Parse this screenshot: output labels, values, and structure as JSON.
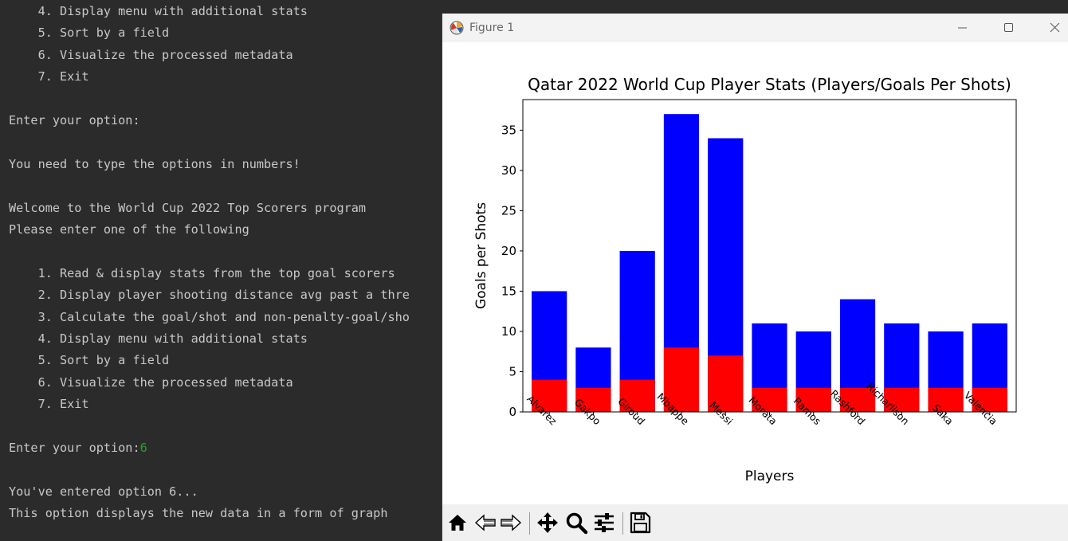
{
  "terminal": {
    "lines": [
      "    4. Display menu with additional stats",
      "    5. Sort by a field",
      "    6. Visualize the processed metadata",
      "    7. Exit",
      "",
      "Enter your option:",
      "",
      "You need to type the options in numbers!",
      "",
      "Welcome to the World Cup 2022 Top Scorers program",
      "Please enter one of the following",
      "",
      "    1. Read & display stats from the top goal scorers",
      "    2. Display player shooting distance avg past a thre",
      "    3. Calculate the goal/shot and non-penalty-goal/sho",
      "    4. Display menu with additional stats",
      "    5. Sort by a field",
      "    6. Visualize the processed metadata",
      "    7. Exit",
      "",
      "Enter your option:",
      "",
      "You've entered option 6...",
      "This option displays the new data in a form of graph"
    ],
    "typed_input": "6",
    "typed_input_line": 20,
    "input_color": "#27a327"
  },
  "window": {
    "title": "Figure 1",
    "icons": [
      "matplotlib-icon",
      "minimize-icon",
      "maximize-icon",
      "close-icon"
    ]
  },
  "toolbar": {
    "buttons": [
      "home-icon",
      "back-icon",
      "forward-icon",
      "pan-icon",
      "zoom-icon",
      "configure-subplots-icon",
      "save-icon"
    ]
  },
  "chart_data": {
    "type": "bar",
    "title": "Qatar 2022 World Cup Player Stats (Players/Goals Per Shots)",
    "xlabel": "Players",
    "ylabel": "Goals per Shots",
    "categories": [
      "Alvarez",
      "Gakpo",
      "Giroud",
      "Mbappe",
      "Messi",
      "Morata",
      "Ramos",
      "Rashford",
      "Richarlison",
      "Saka",
      "Valencia"
    ],
    "series": [
      {
        "values": [
          15,
          8,
          20,
          37,
          34,
          11,
          10,
          14,
          11,
          10,
          11
        ],
        "color": "#0000ff"
      },
      {
        "values": [
          4,
          3,
          4,
          8,
          7,
          3,
          3,
          3,
          3,
          3,
          3
        ],
        "color": "#ff0000"
      }
    ],
    "ylim": [
      0,
      38.8
    ],
    "yticks": [
      0,
      5,
      10,
      15,
      20,
      25,
      30,
      35
    ],
    "xtick_rotation": -45,
    "grid": false,
    "legend": "none"
  }
}
